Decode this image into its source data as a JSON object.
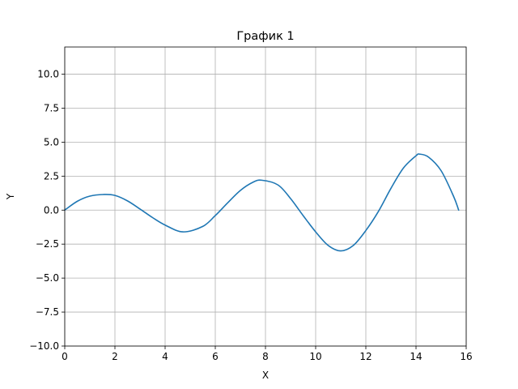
{
  "chart_data": {
    "type": "line",
    "title": "График 1",
    "xlabel": "X",
    "ylabel": "Y",
    "xlim": [
      0,
      16
    ],
    "ylim": [
      -10,
      12
    ],
    "xticks": [
      0,
      2,
      4,
      6,
      8,
      10,
      12,
      14,
      16
    ],
    "xtick_labels": [
      "0",
      "2",
      "4",
      "6",
      "8",
      "10",
      "12",
      "14",
      "16"
    ],
    "yticks": [
      -10,
      -7.5,
      -5,
      -2.5,
      0,
      2.5,
      5,
      7.5,
      10
    ],
    "ytick_labels": [
      "−10.0",
      "−7.5",
      "−5.0",
      "−2.5",
      "0.0",
      "2.5",
      "5.0",
      "7.5",
      "10.0"
    ],
    "grid": true,
    "series": [
      {
        "color": "#1f77b4",
        "x": [
          0,
          0.5,
          1.0,
          1.57,
          2.0,
          2.5,
          3.0,
          3.5,
          4.0,
          4.71,
          5.5,
          6.0,
          6.5,
          7.0,
          7.5,
          7.85,
          8.5,
          9.0,
          9.5,
          10.0,
          10.5,
          11.0,
          11.5,
          12.0,
          12.5,
          13.0,
          13.5,
          14.0,
          14.14,
          14.5,
          15.0,
          15.5,
          15.7
        ],
        "y": [
          0,
          0.65,
          1.03,
          1.15,
          1.08,
          0.68,
          0.08,
          -0.55,
          -1.1,
          -1.6,
          -1.2,
          -0.4,
          0.55,
          1.45,
          2.05,
          2.2,
          1.85,
          0.85,
          -0.4,
          -1.6,
          -2.6,
          -3.0,
          -2.6,
          -1.5,
          -0.1,
          1.6,
          3.1,
          4.0,
          4.12,
          3.9,
          2.9,
          1.0,
          0.0
        ]
      }
    ]
  }
}
